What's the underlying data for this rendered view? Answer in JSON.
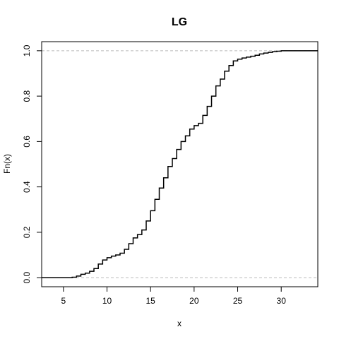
{
  "chart_data": {
    "type": "step",
    "title": "LG",
    "xlabel": "x",
    "ylabel": "Fn(x)",
    "xlim": [
      2.5,
      34.2
    ],
    "ylim": [
      -0.04,
      1.04
    ],
    "x_ticks": [
      5,
      10,
      15,
      20,
      25,
      30
    ],
    "y_ticks": [
      0.0,
      0.2,
      0.4,
      0.6,
      0.8,
      1.0
    ],
    "x_tick_labels": [
      "5",
      "10",
      "15",
      "20",
      "25",
      "30"
    ],
    "y_tick_labels": [
      "0.0",
      "0.2",
      "0.4",
      "0.6",
      "0.8",
      "1.0"
    ],
    "reference_lines_y": [
      0,
      1
    ],
    "grid": false,
    "series": [
      {
        "points": [
          [
            2.5,
            0.0
          ],
          [
            5.5,
            0.0
          ],
          [
            6.0,
            0.002
          ],
          [
            6.5,
            0.007
          ],
          [
            7.0,
            0.015
          ],
          [
            7.5,
            0.02
          ],
          [
            8.0,
            0.028
          ],
          [
            8.5,
            0.04
          ],
          [
            9.0,
            0.06
          ],
          [
            9.5,
            0.078
          ],
          [
            10.0,
            0.088
          ],
          [
            10.5,
            0.095
          ],
          [
            11.0,
            0.1
          ],
          [
            11.5,
            0.108
          ],
          [
            12.0,
            0.125
          ],
          [
            12.5,
            0.15
          ],
          [
            13.0,
            0.175
          ],
          [
            13.5,
            0.19
          ],
          [
            14.0,
            0.21
          ],
          [
            14.5,
            0.25
          ],
          [
            15.0,
            0.295
          ],
          [
            15.5,
            0.345
          ],
          [
            16.0,
            0.395
          ],
          [
            16.5,
            0.44
          ],
          [
            17.0,
            0.49
          ],
          [
            17.5,
            0.525
          ],
          [
            18.0,
            0.565
          ],
          [
            18.5,
            0.6
          ],
          [
            19.0,
            0.625
          ],
          [
            19.5,
            0.655
          ],
          [
            20.0,
            0.67
          ],
          [
            20.5,
            0.68
          ],
          [
            21.0,
            0.715
          ],
          [
            21.5,
            0.755
          ],
          [
            22.0,
            0.8
          ],
          [
            22.5,
            0.845
          ],
          [
            23.0,
            0.875
          ],
          [
            23.5,
            0.91
          ],
          [
            24.0,
            0.935
          ],
          [
            24.5,
            0.955
          ],
          [
            25.0,
            0.963
          ],
          [
            25.5,
            0.968
          ],
          [
            26.0,
            0.972
          ],
          [
            26.5,
            0.976
          ],
          [
            27.0,
            0.98
          ],
          [
            27.5,
            0.986
          ],
          [
            28.0,
            0.99
          ],
          [
            28.5,
            0.993
          ],
          [
            29.0,
            0.996
          ],
          [
            29.5,
            0.998
          ],
          [
            30.0,
            1.0
          ],
          [
            34.2,
            1.0
          ]
        ]
      }
    ]
  }
}
